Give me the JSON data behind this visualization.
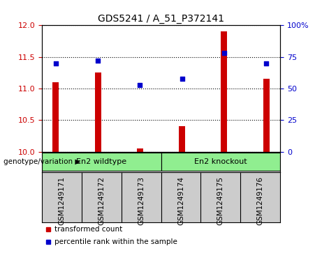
{
  "title": "GDS5241 / A_51_P372141",
  "categories": [
    "GSM1249171",
    "GSM1249172",
    "GSM1249173",
    "GSM1249174",
    "GSM1249175",
    "GSM1249176"
  ],
  "red_values": [
    11.1,
    11.25,
    10.05,
    10.4,
    11.9,
    11.15
  ],
  "blue_values": [
    70,
    72,
    53,
    58,
    78,
    70
  ],
  "ylim_left": [
    10,
    12
  ],
  "ylim_right": [
    0,
    100
  ],
  "yticks_left": [
    10,
    10.5,
    11,
    11.5,
    12
  ],
  "yticks_right": [
    0,
    25,
    50,
    75,
    100
  ],
  "group1_label": "En2 wildtype",
  "group2_label": "En2 knockout",
  "group1_indices": [
    0,
    1,
    2
  ],
  "group2_indices": [
    3,
    4,
    5
  ],
  "genotype_label": "genotype/variation",
  "legend_red": "transformed count",
  "legend_blue": "percentile rank within the sample",
  "bar_color": "#cc0000",
  "dot_color": "#0000cc",
  "green_color": "#90ee90",
  "bg_color": "#ffffff",
  "label_bg_color": "#cccccc",
  "bar_width": 0.15,
  "title_fontsize": 10,
  "tick_fontsize": 8,
  "label_fontsize": 7.5
}
